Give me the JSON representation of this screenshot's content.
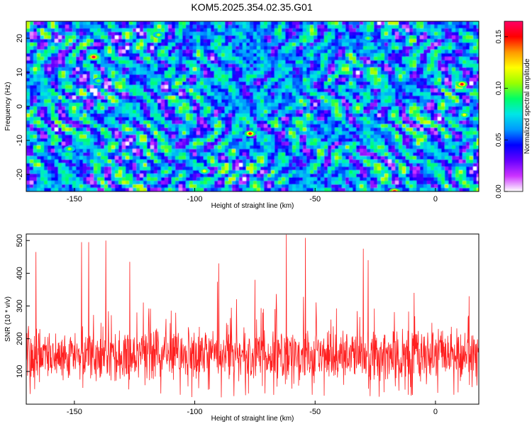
{
  "chart_data": [
    {
      "type": "heatmap",
      "title": "KOM5.2025.354.02.35.G01",
      "xlabel": "Height of straight line (km)",
      "ylabel": "Frequency (Hz)",
      "xlim": [
        -170,
        18
      ],
      "ylim": [
        -25,
        25
      ],
      "xticks": [
        -150,
        -100,
        -50,
        0
      ],
      "yticks": [
        -20,
        -10,
        0,
        10,
        20
      ],
      "colorbar": {
        "label": "Normalized spectral amplitude",
        "range": [
          0.0,
          0.165
        ],
        "ticks": [
          "0.00",
          "0.05",
          "0.10",
          "0.15"
        ],
        "colors": [
          "#ffffff",
          "#cc33ff",
          "#6600ff",
          "#0000ff",
          "#0099ff",
          "#00e6e6",
          "#00ff66",
          "#99ff00",
          "#ffff00",
          "#ff9900",
          "#ff0000",
          "#ff0066"
        ]
      },
      "seed": 7,
      "hotspots": [
        {
          "x": -142,
          "y": 14.5,
          "value": 0.16
        },
        {
          "x": 11,
          "y": 6.5,
          "value": 0.155
        },
        {
          "x": -77,
          "y": -8,
          "value": 0.15
        },
        {
          "x": -17,
          "y": -25,
          "value": 0.16
        },
        {
          "x": -96,
          "y": -19,
          "value": 0.12
        },
        {
          "x": 12,
          "y": -2.5,
          "value": 0.12
        },
        {
          "x": -152,
          "y": -12.5,
          "value": 0.11
        },
        {
          "x": -115,
          "y": 21,
          "value": 0.11
        },
        {
          "x": -28,
          "y": 20,
          "value": 0.1
        },
        {
          "x": -140,
          "y": 7.5,
          "value": 0.1
        }
      ]
    },
    {
      "type": "line",
      "xlabel": "Height of straight line (km)",
      "ylabel": "SNR (10 * v/v)",
      "xlim": [
        -170,
        18
      ],
      "ylim": [
        0,
        520
      ],
      "xticks": [
        -150,
        -100,
        -50,
        0
      ],
      "yticks": [
        100,
        200,
        300,
        400,
        500
      ],
      "color": "#ff2020",
      "samples": 1400,
      "seed": 42,
      "baseline": 150,
      "spread": 60,
      "peaks": [
        {
          "x": -166,
          "y": 465
        },
        {
          "x": -147,
          "y": 495
        },
        {
          "x": -144,
          "y": 495
        },
        {
          "x": -137,
          "y": 500
        },
        {
          "x": -127,
          "y": 435
        },
        {
          "x": -90,
          "y": 430
        },
        {
          "x": -75,
          "y": 380
        },
        {
          "x": -62,
          "y": 518
        },
        {
          "x": -54,
          "y": 508
        },
        {
          "x": -30,
          "y": 475
        },
        {
          "x": -28,
          "y": 440
        },
        {
          "x": 14,
          "y": 330
        }
      ]
    }
  ]
}
